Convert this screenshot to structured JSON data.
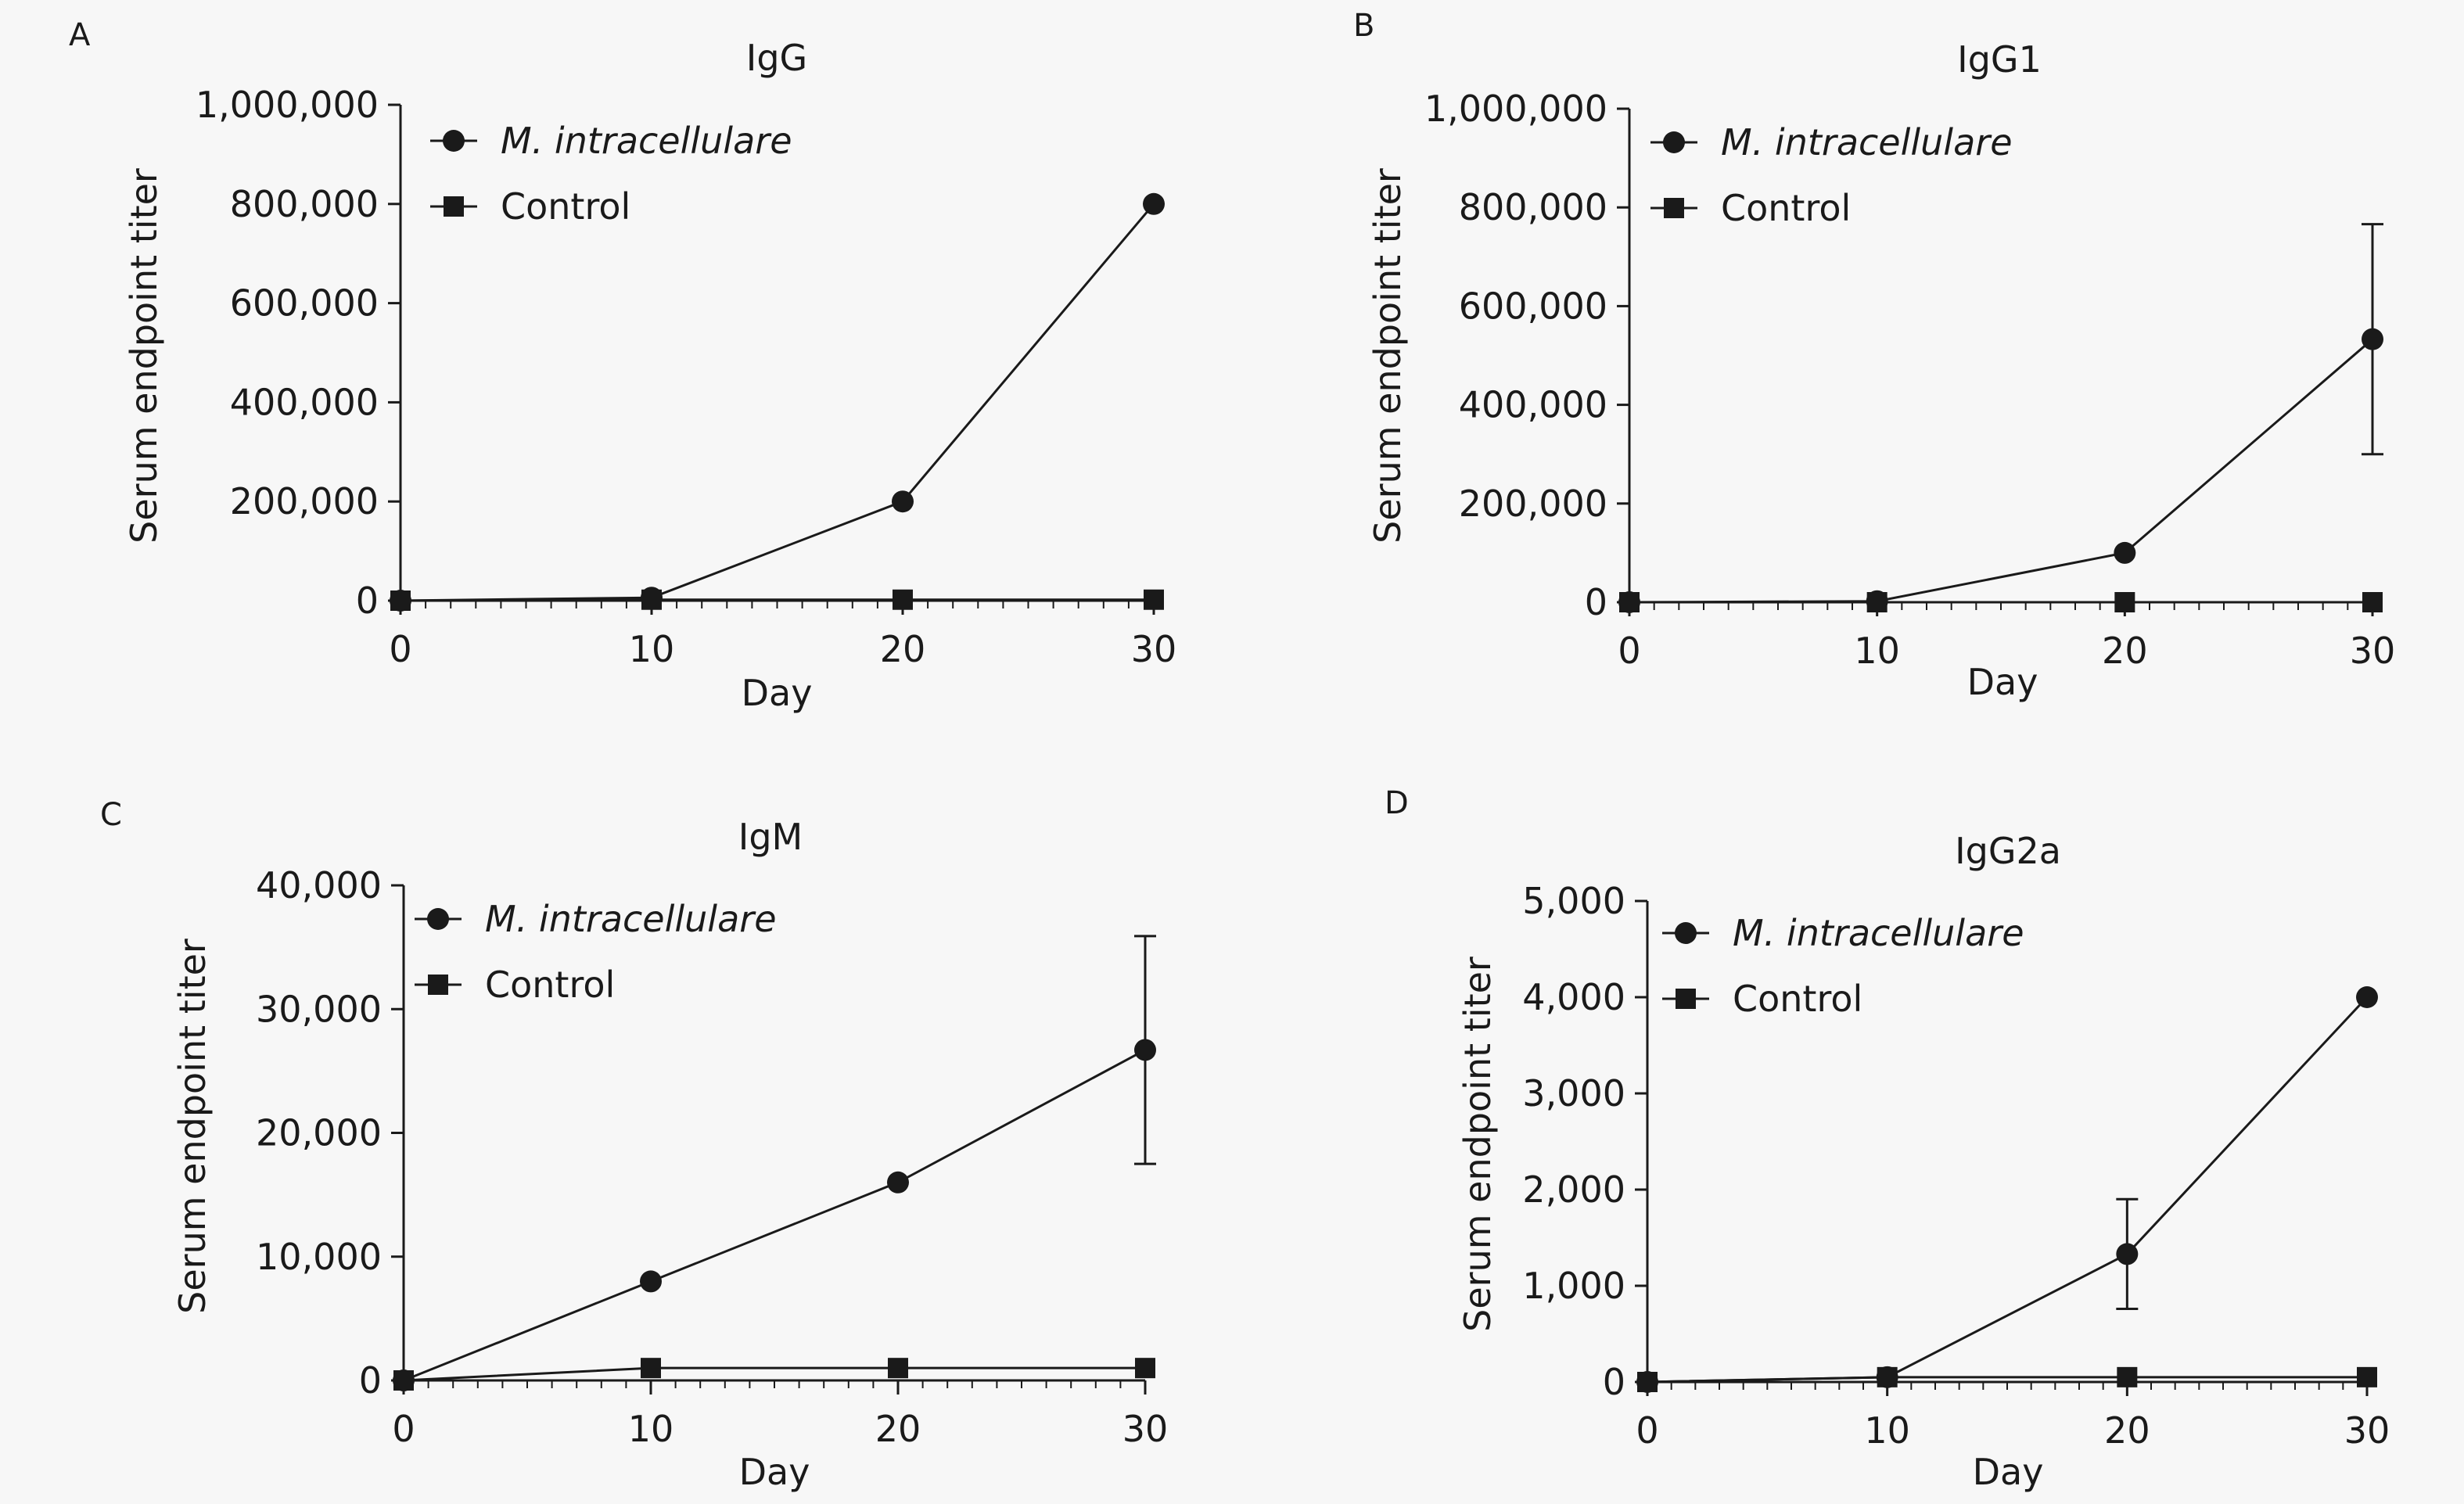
{
  "chart_data": [
    {
      "panel": "A",
      "type": "line",
      "title": "IgG",
      "xlabel": "Day",
      "ylabel": "Serum endpoint titer",
      "x": [
        0,
        10,
        20,
        30
      ],
      "xlim": [
        0,
        30
      ],
      "ylim": [
        0,
        1000000
      ],
      "xticks": [
        0,
        10,
        20,
        30
      ],
      "xtick_labels": [
        "0",
        "10",
        "20",
        "30"
      ],
      "yticks": [
        0,
        200000,
        400000,
        600000,
        800000,
        1000000
      ],
      "ytick_labels": [
        "0",
        "200,000",
        "400,000",
        "600,000",
        "800,000",
        "1,000,000"
      ],
      "grid": false,
      "legend_position": "top-left",
      "series": [
        {
          "name": "M. intracellulare",
          "marker": "circle",
          "values": [
            0,
            6000,
            200000,
            800000
          ],
          "errors": [
            null,
            null,
            null,
            null
          ]
        },
        {
          "name": "Control",
          "marker": "square",
          "values": [
            0,
            2000,
            2000,
            2000
          ],
          "errors": [
            null,
            null,
            null,
            null
          ]
        }
      ]
    },
    {
      "panel": "B",
      "type": "line",
      "title": "IgG1",
      "xlabel": "Day",
      "ylabel": "Serum endpoint titer",
      "x": [
        0,
        10,
        20,
        30
      ],
      "xlim": [
        0,
        30
      ],
      "ylim": [
        0,
        1000000
      ],
      "xticks": [
        0,
        10,
        20,
        30
      ],
      "xtick_labels": [
        "0",
        "10",
        "20",
        "30"
      ],
      "yticks": [
        0,
        200000,
        400000,
        600000,
        800000,
        1000000
      ],
      "ytick_labels": [
        "0",
        "200,000",
        "400,000",
        "600,000",
        "800,000",
        "1,000,000"
      ],
      "grid": false,
      "legend_position": "top-left",
      "series": [
        {
          "name": "M. intracellulare",
          "marker": "circle",
          "values": [
            0,
            2000,
            100000,
            533000
          ],
          "errors": [
            null,
            null,
            null,
            233000
          ]
        },
        {
          "name": "Control",
          "marker": "square",
          "values": [
            0,
            0,
            0,
            0
          ],
          "errors": [
            null,
            null,
            null,
            null
          ]
        }
      ]
    },
    {
      "panel": "C",
      "type": "line",
      "title": "IgM",
      "xlabel": "Day",
      "ylabel": "Serum endpoint titer",
      "x": [
        0,
        10,
        20,
        30
      ],
      "xlim": [
        0,
        30
      ],
      "ylim": [
        0,
        40000
      ],
      "xticks": [
        0,
        10,
        20,
        30
      ],
      "xtick_labels": [
        "0",
        "10",
        "20",
        "30"
      ],
      "yticks": [
        0,
        10000,
        20000,
        30000,
        40000
      ],
      "ytick_labels": [
        "0",
        "10,000",
        "20,000",
        "30,000",
        "40,000"
      ],
      "grid": false,
      "legend_position": "top-left",
      "series": [
        {
          "name": "M. intracellulare",
          "marker": "circle",
          "values": [
            0,
            8000,
            16000,
            26700
          ],
          "errors": [
            null,
            null,
            null,
            9200
          ]
        },
        {
          "name": "Control",
          "marker": "square",
          "values": [
            0,
            1000,
            1000,
            1000
          ],
          "errors": [
            null,
            null,
            null,
            null
          ]
        }
      ]
    },
    {
      "panel": "D",
      "type": "line",
      "title": "IgG2a",
      "xlabel": "Day",
      "ylabel": "Serum endpoint titer",
      "x": [
        0,
        10,
        20,
        30
      ],
      "xlim": [
        0,
        30
      ],
      "ylim": [
        0,
        5000
      ],
      "xticks": [
        0,
        10,
        20,
        30
      ],
      "xtick_labels": [
        "0",
        "10",
        "20",
        "30"
      ],
      "yticks": [
        0,
        1000,
        2000,
        3000,
        4000,
        5000
      ],
      "ytick_labels": [
        "0",
        "1,000",
        "2,000",
        "3,000",
        "4,000",
        "5,000"
      ],
      "grid": false,
      "legend_position": "top-left",
      "series": [
        {
          "name": "M. intracellulare",
          "marker": "circle",
          "values": [
            0,
            50,
            1330,
            4000
          ],
          "errors": [
            null,
            null,
            570,
            null
          ]
        },
        {
          "name": "Control",
          "marker": "square",
          "values": [
            0,
            50,
            50,
            50
          ],
          "errors": [
            null,
            null,
            null,
            null
          ]
        }
      ]
    }
  ]
}
